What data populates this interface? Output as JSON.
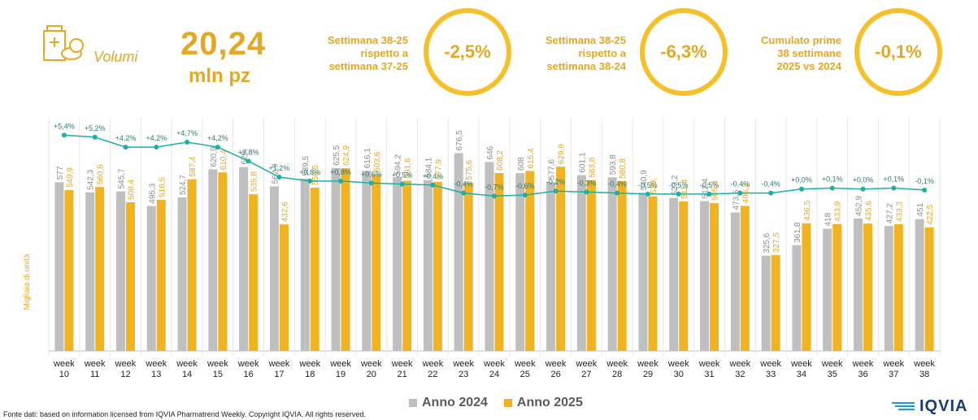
{
  "header": {
    "icon": "pill-box-icon",
    "label": "Volumi",
    "big_value": "20,24",
    "big_unit": "mln pz"
  },
  "kpis": [
    {
      "label": "Settimana 38-25\nrispetto a\nsettimana 37-25",
      "value": "-2,5%"
    },
    {
      "label": "Settimana 38-25\nrispetto a\nsettimana 38-24",
      "value": "-6,3%"
    },
    {
      "label": "Cumulato prime\n38 settimane\n2025 vs 2024",
      "value": "-0,1%"
    }
  ],
  "colors": {
    "accent": "#e5a823",
    "bar2024": "#bfbfbf",
    "bar2025": "#f0b323",
    "line": "#1bb0a3"
  },
  "chart_data": {
    "type": "bar",
    "ylabel": "Migliaia di unità",
    "categories": [
      "week\n10",
      "week\n11",
      "week\n12",
      "week\n13",
      "week\n14",
      "week\n15",
      "week\n16",
      "week\n17",
      "week\n18",
      "week\n19",
      "week\n20",
      "week\n21",
      "week\n22",
      "week\n23",
      "week\n24",
      "week\n25",
      "week\n26",
      "week\n27",
      "week\n28",
      "week\n29",
      "week\n30",
      "week\n31",
      "week\n32",
      "week\n33",
      "week\n34",
      "week\n35",
      "week\n36",
      "week\n37",
      "week\n38"
    ],
    "series": [
      {
        "name": "Anno 2024",
        "values": [
          577,
          542.3,
          545.7,
          495.3,
          524.7,
          620.9,
          629,
          562.9,
          589.5,
          625.5,
          616.1,
          594.2,
          584.1,
          676.5,
          646,
          608,
          577.6,
          601.1,
          593.8,
          540.9,
          523.2,
          512.4,
          473.5,
          325.6,
          361.8,
          418,
          452.9,
          427.2,
          451
        ]
      },
      {
        "name": "Anno 2025",
        "values": [
          549.9,
          560.5,
          508.4,
          516.5,
          587.4,
          610.4,
          535.8,
          432.6,
          558.5,
          624.9,
          603.6,
          581.6,
          577.9,
          575.6,
          608.2,
          615.4,
          629.9,
          583.8,
          580.8,
          529,
          511.4,
          505.4,
          496.2,
          327.5,
          436.5,
          433.9,
          435.6,
          433.3,
          422.5
        ]
      }
    ],
    "bar_labels_2024": [
      "577",
      "542,3",
      "545,7",
      "495,3",
      "524,7",
      "620,9",
      "629,",
      "562,9",
      "589,5",
      "625,5",
      "616,1",
      "594,2",
      "584,1",
      "676,5",
      "646",
      "608",
      "577,6",
      "601,1",
      "593,8",
      "540,9",
      "523,2",
      "512,4",
      "473,5",
      "325,6",
      "361,8",
      "418",
      "452,9",
      "427,2",
      "451"
    ],
    "bar_labels_2025": [
      "549,9",
      "560,5",
      "508,4",
      "516,5",
      "587,4",
      "610,4",
      "535,8",
      "432,6",
      "558,5",
      "624,9",
      "603,6",
      "581,6",
      "577,9",
      "575,6",
      "608,2",
      "615,4",
      "629,9",
      "583,8",
      "580,8",
      "529,",
      "511,4",
      "505,4",
      "496,2",
      "327,5",
      "436,5",
      "433,9",
      "435,6",
      "433,3",
      "422,5"
    ],
    "growth": [
      5.4,
      5.2,
      4.2,
      4.2,
      4.7,
      4.2,
      2.8,
      1.2,
      0.8,
      0.8,
      0.6,
      0.5,
      0.4,
      -0.4,
      -0.7,
      -0.6,
      -0.2,
      -0.3,
      -0.4,
      -0.5,
      -0.5,
      -0.5,
      -0.4,
      -0.4,
      0.0,
      0.1,
      0.0,
      0.1,
      -0.1
    ],
    "growth_labels": [
      "+5,4%",
      "+5,2%",
      "+4,2%",
      "+4,2%",
      "+4,7%",
      "+4,2%",
      "+2,8%",
      "+1,2%",
      "+0,8%",
      "+0,8%",
      "+0,6%",
      "+0,5%",
      "+0,4%",
      "-0,4%",
      "-0,7%",
      "-0,6%",
      "-0,2%",
      "-0,3%",
      "-0,4%",
      "-0,5%",
      "-0,5%",
      "-0,5%",
      "-0,4%",
      "-0,4%",
      "+0,0%",
      "+0,1%",
      "+0,0%",
      "+0,1%",
      "-0,1%"
    ],
    "ylim": [
      0,
      1000
    ],
    "growth_ylim": [
      -1,
      6
    ],
    "legend": "bottom"
  },
  "footer": {
    "source": "Fonte dati: based on information licensed from IQVIA Pharmatrend Weekly. Copyright IQVIA. All rights reserved.",
    "logo": "IQVIA"
  }
}
